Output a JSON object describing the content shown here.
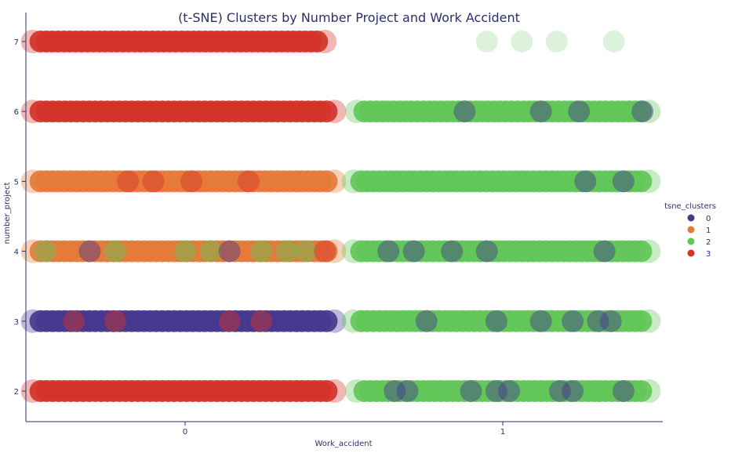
{
  "chart_data": {
    "type": "scatter",
    "title": "(t-SNE) Clusters by Number Project and Work Accident",
    "xlabel": "Work_accident",
    "ylabel": "number_project",
    "x_categories": [
      "0",
      "1"
    ],
    "y_ticks": [
      "2",
      "3",
      "4",
      "5",
      "6",
      "7"
    ],
    "legend": {
      "title": "tsne_clusters",
      "placement": "right",
      "entries": [
        {
          "label": "0",
          "color": "#46378f"
        },
        {
          "label": "1",
          "color": "#e57a3a"
        },
        {
          "label": "2",
          "color": "#62c558"
        },
        {
          "label": "3",
          "color": "#d5322a"
        }
      ]
    },
    "series": [
      {
        "x": "0",
        "y": 7,
        "cluster": "3",
        "jitter": [
          -0.49,
          0.45
        ],
        "blobs": []
      },
      {
        "x": "0",
        "y": 6,
        "cluster": "3",
        "jitter": [
          -0.49,
          0.48
        ],
        "blobs": []
      },
      {
        "x": "0",
        "y": 5,
        "cluster": "1",
        "jitter": [
          -0.49,
          0.48
        ],
        "blobs": [
          {
            "offset": -0.18,
            "cluster": "3"
          },
          {
            "offset": -0.1,
            "cluster": "3"
          },
          {
            "offset": 0.02,
            "cluster": "3"
          },
          {
            "offset": 0.2,
            "cluster": "3"
          }
        ]
      },
      {
        "x": "0",
        "y": 4,
        "cluster": "1",
        "jitter": [
          -0.49,
          0.48
        ],
        "blobs": [
          {
            "offset": -0.44,
            "cluster": "2"
          },
          {
            "offset": -0.3,
            "cluster": "0"
          },
          {
            "offset": -0.22,
            "cluster": "2"
          },
          {
            "offset": 0.0,
            "cluster": "2"
          },
          {
            "offset": 0.08,
            "cluster": "2"
          },
          {
            "offset": 0.14,
            "cluster": "0"
          },
          {
            "offset": 0.24,
            "cluster": "2"
          },
          {
            "offset": 0.32,
            "cluster": "2"
          },
          {
            "offset": 0.38,
            "cluster": "2"
          },
          {
            "offset": 0.44,
            "cluster": "3"
          }
        ]
      },
      {
        "x": "0",
        "y": 3,
        "cluster": "0",
        "jitter": [
          -0.49,
          0.48
        ],
        "blobs": [
          {
            "offset": -0.35,
            "cluster": "3"
          },
          {
            "offset": -0.22,
            "cluster": "3"
          },
          {
            "offset": 0.14,
            "cluster": "3"
          },
          {
            "offset": 0.24,
            "cluster": "3"
          }
        ]
      },
      {
        "x": "0",
        "y": 2,
        "cluster": "3",
        "jitter": [
          -0.49,
          0.48
        ],
        "blobs": []
      },
      {
        "x": "1",
        "y": 7,
        "cluster": "2",
        "jitter": [
          -0.05,
          0.35
        ],
        "sparse": [
          -0.05,
          0.06,
          0.17,
          0.35
        ]
      },
      {
        "x": "1",
        "y": 6,
        "cluster": "2",
        "jitter": [
          -0.47,
          0.47
        ],
        "blobs": [
          {
            "offset": -0.12,
            "cluster": "0"
          },
          {
            "offset": 0.12,
            "cluster": "0"
          },
          {
            "offset": 0.24,
            "cluster": "0"
          },
          {
            "offset": 0.44,
            "cluster": "0"
          }
        ]
      },
      {
        "x": "1",
        "y": 5,
        "cluster": "2",
        "jitter": [
          -0.48,
          0.47
        ],
        "blobs": [
          {
            "offset": 0.26,
            "cluster": "0"
          },
          {
            "offset": 0.38,
            "cluster": "0"
          }
        ]
      },
      {
        "x": "1",
        "y": 4,
        "cluster": "2",
        "jitter": [
          -0.48,
          0.47
        ],
        "blobs": [
          {
            "offset": -0.36,
            "cluster": "0"
          },
          {
            "offset": -0.28,
            "cluster": "0"
          },
          {
            "offset": -0.16,
            "cluster": "0"
          },
          {
            "offset": -0.05,
            "cluster": "0"
          },
          {
            "offset": 0.32,
            "cluster": "0"
          }
        ]
      },
      {
        "x": "1",
        "y": 3,
        "cluster": "2",
        "jitter": [
          -0.48,
          0.47
        ],
        "blobs": [
          {
            "offset": -0.24,
            "cluster": "0"
          },
          {
            "offset": -0.02,
            "cluster": "0"
          },
          {
            "offset": 0.12,
            "cluster": "0"
          },
          {
            "offset": 0.22,
            "cluster": "0"
          },
          {
            "offset": 0.3,
            "cluster": "0"
          },
          {
            "offset": 0.34,
            "cluster": "0"
          }
        ]
      },
      {
        "x": "1",
        "y": 2,
        "cluster": "2",
        "jitter": [
          -0.47,
          0.47
        ],
        "blobs": [
          {
            "offset": -0.34,
            "cluster": "0"
          },
          {
            "offset": -0.3,
            "cluster": "0"
          },
          {
            "offset": -0.1,
            "cluster": "0"
          },
          {
            "offset": -0.02,
            "cluster": "0"
          },
          {
            "offset": 0.02,
            "cluster": "0"
          },
          {
            "offset": 0.18,
            "cluster": "0"
          },
          {
            "offset": 0.22,
            "cluster": "0"
          },
          {
            "offset": 0.38,
            "cluster": "0"
          }
        ]
      }
    ]
  }
}
